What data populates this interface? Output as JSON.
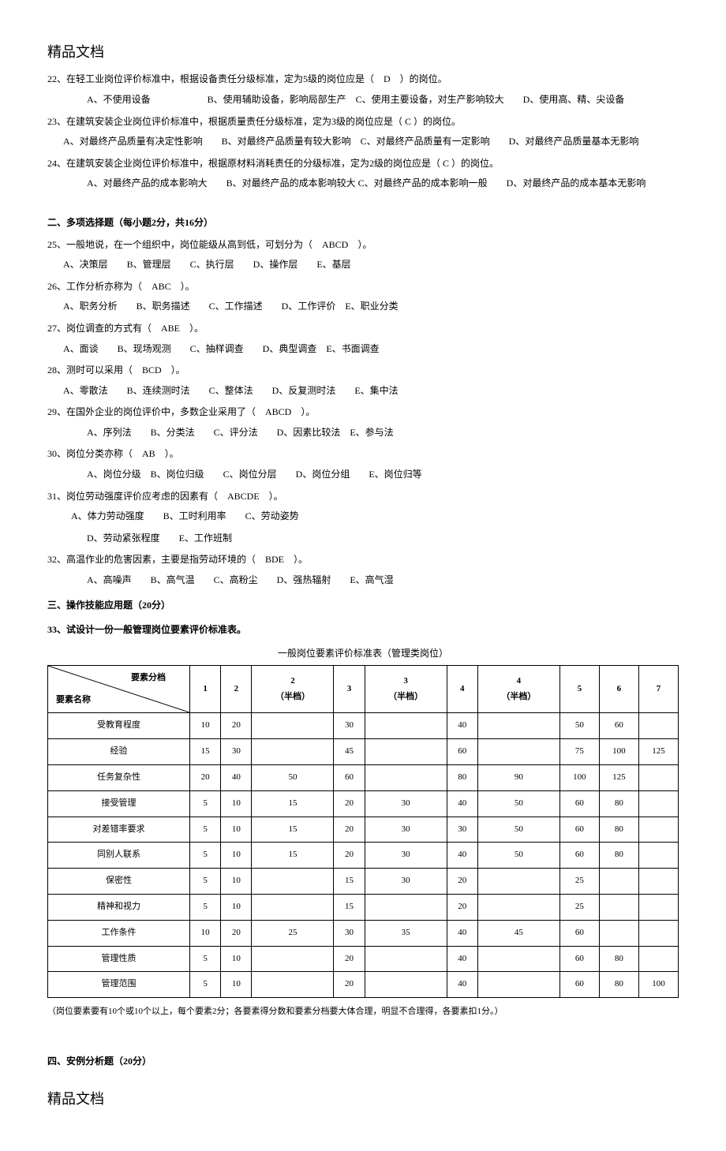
{
  "header": "精品文档",
  "footer": "精品文档",
  "q22": {
    "text": "22、在轻工业岗位评价标准中，根据设备责任分级标准，定为5级的岗位应是（　D　）的岗位。",
    "opts": "A、不使用设备　　　　　　B、使用辅助设备，影响局部生产　C、使用主要设备，对生产影响较大　　D、使用高、精、尖设备"
  },
  "q23": {
    "text": "23、在建筑安装企业岗位评价标准中，根据质量责任分级标准，定为3级的岗位应是（ C ）的岗位。",
    "opts": "A、对最终产品质量有决定性影响　　B、对最终产品质量有较大影响　C、对最终产品质量有一定影响　　D、对最终产品质量基本无影响"
  },
  "q24": {
    "text": "24、在建筑安装企业岗位评价标准中，根据原材料消耗责任的分级标准，定为2级的岗位应是（ C ）的岗位。",
    "opts": "A、对最终产品的成本影响大　　B、对最终产品的成本影响较大 C、对最终产品的成本影响一般　　D、对最终产品的成本基本无影响"
  },
  "section2": "二、多项选择题（每小题2分，共16分）",
  "q25": {
    "text": "25、一般地说，在一个组织中，岗位能级从高到低，可划分为（　ABCD　）。",
    "opts": "A、决策层　　B、管理层　　C、执行层　　D、操作层　　E、基层"
  },
  "q26": {
    "text": "26、工作分析亦称为（　ABC　）。",
    "opts": "A、职务分析　　B、职务描述　　C、工作描述　　D、工作评价　E、职业分类"
  },
  "q27": {
    "text": "27、岗位调查的方式有（　ABE　）。",
    "opts": "A、面谈　　B、现场观测　　C、抽样调查　　D、典型调查　E、书面调查"
  },
  "q28": {
    "text": "28、测时可以采用（　BCD　）。",
    "opts": "A、零散法　　B、连续测时法　　C、整体法　　D、反复测时法　　E、集中法"
  },
  "q29": {
    "text": "29、在国外企业的岗位评价中，多数企业采用了（　ABCD　）。",
    "opts": "A、序列法　　B、分类法　　C、评分法　　D、因素比较法　E、参与法"
  },
  "q30": {
    "text": "30、岗位分类亦称（　AB　）。",
    "opts": "A、岗位分级　B、岗位归级　　C、岗位分层　　D、岗位分组　　E、岗位归等"
  },
  "q31": {
    "text": "31、岗位劳动强度评价应考虑的因素有（　ABCDE　）。",
    "opts1": "A、体力劳动强度　　B、工时利用率　　C、劳动姿势",
    "opts2": "D、劳动紧张程度　　E、工作班制"
  },
  "q32": {
    "text": "32、高温作业的危害因素，主要是指劳动环境的（　BDE　）。",
    "opts": "A、高噪声　　B、高气温　　C、高粉尘　　D、强热辐射　　E、高气湿"
  },
  "section3": "三、操作技能应用题（20分）",
  "q33": "33、试设计一份一般管理岗位要素评价标准表。",
  "tableTitle": "一般岗位要素评价标准表（管理类岗位）",
  "tableHeader": {
    "diagTop": "要素分档",
    "diagBottom": "要素名称",
    "cols": [
      "1",
      "2",
      "2\n（半档）",
      "3",
      "3\n（半档）",
      "4",
      "4\n（半档）",
      "5",
      "6",
      "7"
    ]
  },
  "tableRows": [
    {
      "name": "受教育程度",
      "vals": [
        "10",
        "20",
        "",
        "30",
        "",
        "40",
        "",
        "50",
        "60",
        ""
      ]
    },
    {
      "name": "经验",
      "vals": [
        "15",
        "30",
        "",
        "45",
        "",
        "60",
        "",
        "75",
        "100",
        "125"
      ]
    },
    {
      "name": "任务复杂性",
      "vals": [
        "20",
        "40",
        "50",
        "60",
        "",
        "80",
        "90",
        "100",
        "125",
        ""
      ]
    },
    {
      "name": "接受管理",
      "vals": [
        "5",
        "10",
        "15",
        "20",
        "30",
        "40",
        "50",
        "60",
        "80",
        ""
      ]
    },
    {
      "name": "对差错率要求",
      "vals": [
        "5",
        "10",
        "15",
        "20",
        "30",
        "30",
        "50",
        "60",
        "80",
        ""
      ]
    },
    {
      "name": "同别人联系",
      "vals": [
        "5",
        "10",
        "15",
        "20",
        "30",
        "40",
        "50",
        "60",
        "80",
        ""
      ]
    },
    {
      "name": "保密性",
      "vals": [
        "5",
        "10",
        "",
        "15",
        "30",
        "20",
        "",
        "25",
        "",
        ""
      ]
    },
    {
      "name": "精神和视力",
      "vals": [
        "5",
        "10",
        "",
        "15",
        "",
        "20",
        "",
        "25",
        "",
        ""
      ]
    },
    {
      "name": "工作条件",
      "vals": [
        "10",
        "20",
        "25",
        "30",
        "35",
        "40",
        "45",
        "60",
        "",
        ""
      ]
    },
    {
      "name": "管理性质",
      "vals": [
        "5",
        "10",
        "",
        "20",
        "",
        "40",
        "",
        "60",
        "80",
        ""
      ]
    },
    {
      "name": "管理范围",
      "vals": [
        "5",
        "10",
        "",
        "20",
        "",
        "40",
        "",
        "60",
        "80",
        "100"
      ]
    }
  ],
  "tableNote": "（岗位要素要有10个或10个以上，每个要素2分；各要素得分数和要素分档要大体合理，明显不合理得，各要素扣1分。）",
  "section4": "四、安例分析题（20分）"
}
